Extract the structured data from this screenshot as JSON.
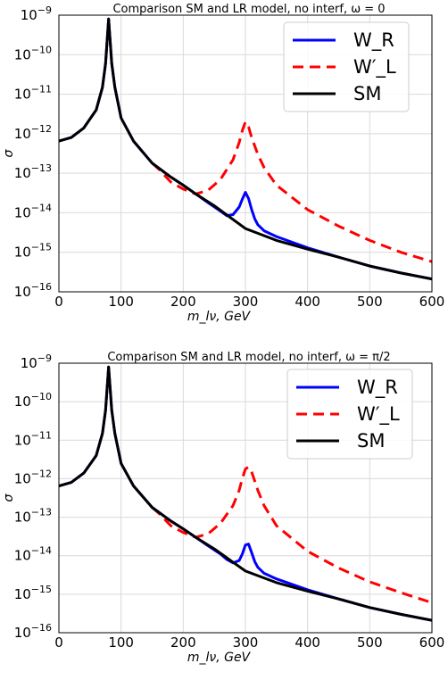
{
  "chart_data": [
    {
      "type": "line",
      "title": "Comparison SM and LR model, no interf, ω = 0",
      "xlabel": "m_lν, GeV",
      "ylabel": "σ",
      "xlim": [
        0,
        600
      ],
      "ylim": [
        1e-16,
        1e-09
      ],
      "yscale": "log",
      "grid": true,
      "legend_position": "top-right",
      "xticks": [
        "0",
        "100",
        "200",
        "300",
        "400",
        "500",
        "600"
      ],
      "yticks_exp": [
        "-9",
        "-10",
        "-11",
        "-12",
        "-13",
        "-14",
        "-15",
        "-16"
      ],
      "series": [
        {
          "name": "W_R",
          "color": "#0000ff",
          "dash": "solid",
          "x": [
            0,
            20,
            40,
            60,
            70,
            75,
            80,
            85,
            90,
            100,
            120,
            150,
            180,
            200,
            220,
            240,
            260,
            270,
            280,
            290,
            295,
            300,
            305,
            310,
            315,
            320,
            330,
            350,
            400,
            450,
            500,
            550,
            600
          ],
          "y": [
            6.5e-13,
            8e-13,
            1.4e-12,
            4e-12,
            1.5e-11,
            6e-11,
            8e-10,
            6e-11,
            1.5e-11,
            2.5e-12,
            6.5e-13,
            1.8e-13,
            8e-14,
            5e-14,
            3e-14,
            1.8e-14,
            1.1e-14,
            8.5e-15,
            9e-15,
            1.4e-14,
            2.2e-14,
            3.3e-14,
            2.3e-14,
            1.2e-14,
            7e-15,
            5e-15,
            3.5e-15,
            2.5e-15,
            1.3e-15,
            7.5e-16,
            4.5e-16,
            3e-16,
            2.1e-16
          ]
        },
        {
          "name": "W′_L",
          "color": "#ff0000",
          "dash": "dashed",
          "x": [
            150,
            160,
            180,
            200,
            220,
            240,
            260,
            280,
            290,
            295,
            300,
            305,
            310,
            320,
            330,
            350,
            400,
            450,
            500,
            550,
            600
          ],
          "y": [
            1.8e-13,
            1.3e-13,
            6e-14,
            4e-14,
            3e-14,
            3.7e-14,
            7e-14,
            2.2e-13,
            6e-13,
            1.2e-12,
            2e-12,
            1.5e-12,
            8e-13,
            3e-13,
            1.4e-13,
            5e-14,
            1.2e-14,
            4.6e-15,
            2e-15,
            1e-15,
            5.8e-16
          ]
        },
        {
          "name": "SM",
          "color": "#000000",
          "dash": "solid",
          "x": [
            0,
            20,
            40,
            60,
            70,
            75,
            80,
            85,
            90,
            100,
            120,
            150,
            180,
            200,
            220,
            250,
            300,
            350,
            400,
            450,
            500,
            550,
            600
          ],
          "y": [
            6.5e-13,
            8e-13,
            1.4e-12,
            4e-12,
            1.5e-11,
            6e-11,
            8e-10,
            6e-11,
            1.5e-11,
            2.5e-12,
            6.5e-13,
            1.8e-13,
            8e-14,
            5e-14,
            3e-14,
            1.5e-14,
            4e-15,
            2e-15,
            1.2e-15,
            7.5e-16,
            4.5e-16,
            3e-16,
            2.1e-16
          ]
        }
      ]
    },
    {
      "type": "line",
      "title": "Comparison SM and LR model, no interf, ω = π/2",
      "xlabel": "m_lν, GeV",
      "ylabel": "σ",
      "xlim": [
        0,
        600
      ],
      "ylim": [
        1e-16,
        1e-09
      ],
      "yscale": "log",
      "grid": true,
      "legend_position": "top-right",
      "xticks": [
        "0",
        "100",
        "200",
        "300",
        "400",
        "500",
        "600"
      ],
      "yticks_exp": [
        "-9",
        "-10",
        "-11",
        "-12",
        "-13",
        "-14",
        "-15",
        "-16"
      ],
      "series": [
        {
          "name": "W_R",
          "color": "#0000ff",
          "dash": "solid",
          "x": [
            0,
            20,
            40,
            60,
            70,
            75,
            80,
            85,
            90,
            100,
            120,
            150,
            180,
            200,
            220,
            240,
            260,
            270,
            280,
            290,
            295,
            300,
            305,
            310,
            315,
            320,
            330,
            350,
            400,
            450,
            500,
            550,
            600
          ],
          "y": [
            6.5e-13,
            8e-13,
            1.4e-12,
            4e-12,
            1.5e-11,
            6e-11,
            8e-10,
            6e-11,
            1.5e-11,
            2.5e-12,
            6.5e-13,
            1.8e-13,
            8e-14,
            5e-14,
            3e-14,
            1.8e-14,
            1.1e-14,
            8e-15,
            6.5e-15,
            7.5e-15,
            1.1e-14,
            1.9e-14,
            2e-14,
            1.2e-14,
            7e-15,
            5e-15,
            3.5e-15,
            2.5e-15,
            1.3e-15,
            7.5e-16,
            4.5e-16,
            3e-16,
            2.1e-16
          ]
        },
        {
          "name": "W′_L",
          "color": "#ff0000",
          "dash": "dashed",
          "x": [
            150,
            160,
            180,
            200,
            220,
            240,
            260,
            280,
            290,
            295,
            300,
            305,
            310,
            320,
            330,
            350,
            400,
            450,
            500,
            550,
            600
          ],
          "y": [
            1.8e-13,
            1.3e-13,
            6e-14,
            4e-14,
            3e-14,
            3.7e-14,
            7e-14,
            2e-13,
            5e-13,
            1e-12,
            1.8e-12,
            2e-12,
            1.5e-12,
            5e-13,
            2e-13,
            6e-14,
            1.3e-14,
            4.8e-15,
            2.1e-15,
            1.1e-15,
            6e-16
          ]
        },
        {
          "name": "SM",
          "color": "#000000",
          "dash": "solid",
          "x": [
            0,
            20,
            40,
            60,
            70,
            75,
            80,
            85,
            90,
            100,
            120,
            150,
            180,
            200,
            220,
            250,
            300,
            350,
            400,
            450,
            500,
            550,
            600
          ],
          "y": [
            6.5e-13,
            8e-13,
            1.4e-12,
            4e-12,
            1.5e-11,
            6e-11,
            8e-10,
            6e-11,
            1.5e-11,
            2.5e-12,
            6.5e-13,
            1.8e-13,
            8e-14,
            5e-14,
            3e-14,
            1.5e-14,
            4e-15,
            2e-15,
            1.2e-15,
            7.5e-16,
            4.5e-16,
            3e-16,
            2.1e-16
          ]
        }
      ]
    }
  ]
}
